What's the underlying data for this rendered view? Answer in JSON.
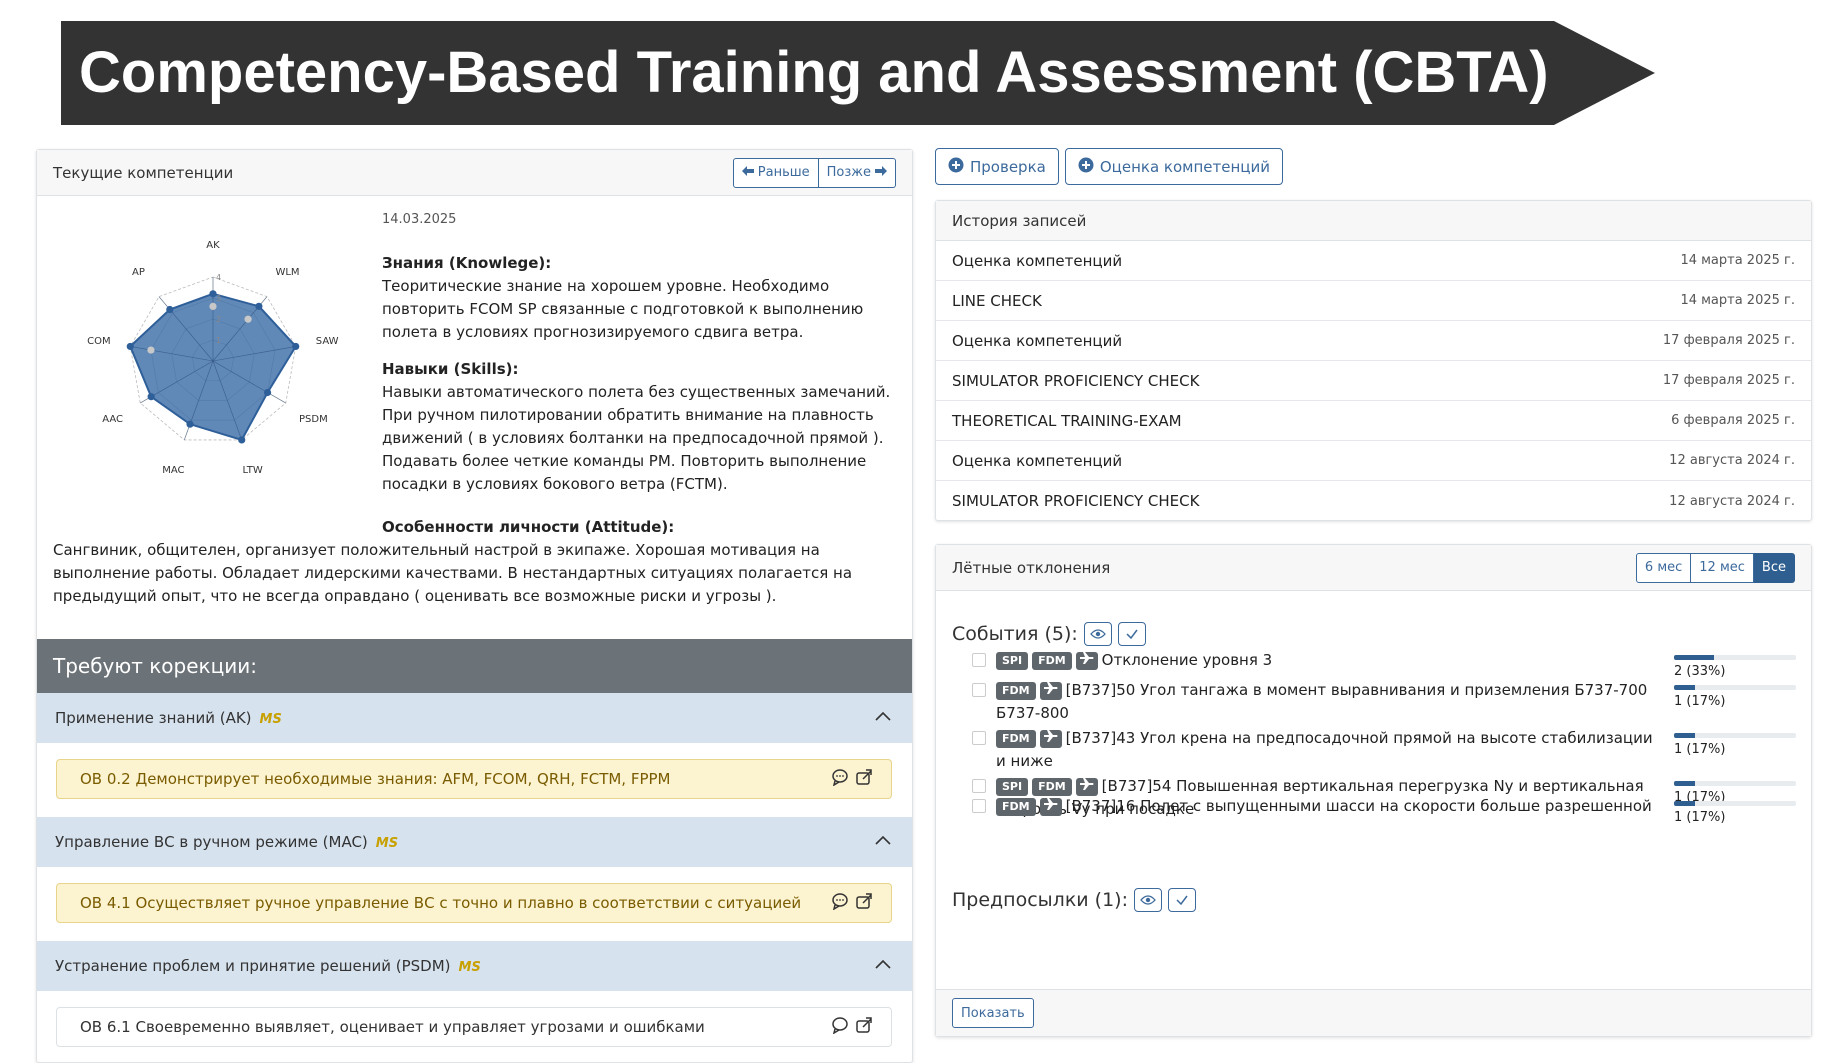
{
  "banner": {
    "title": "Competency-Based Training and Assessment (CBTA)"
  },
  "competencies": {
    "header": "Текущие компетенции",
    "earlier_label": "Раньше",
    "later_label": "Позже",
    "date": "14.03.2025",
    "radar": {
      "axes": [
        "AK",
        "WLM",
        "SAW",
        "PSDM",
        "LTW",
        "MAC",
        "AAC",
        "COM",
        "AP"
      ],
      "ticks": [
        "1",
        "2",
        "3",
        "4"
      ],
      "max": 4,
      "values": [
        3.2,
        3.4,
        4.0,
        3.0,
        4.0,
        3.2,
        3.4,
        4.0,
        3.2
      ],
      "previous": [
        2.6,
        2.6,
        4.0,
        3.0,
        4.0,
        3.2,
        3.4,
        3.0,
        3.2
      ],
      "fill_color": "#3e6fa8",
      "prev_color": "#c8c8c8"
    },
    "knowledge_title": "Знания (Knowlege):",
    "knowledge_text": "Теоритические знание на хорошем уровне. Необходимо повторить FCOM SP связанные с подготовкой к выполнению полета в условиях прогнозизируемого сдвига ветра.",
    "skills_title": "Навыки (Skills):",
    "skills_text": "Навыки автоматического полета без существенных замечаний. При ручном пилотировании обратить внимание на плавность движений ( в условиях болтанки на предпосадочной прямой ). Подавать более четкие команды PM. Повторить выполнение посадки в условиях бокового ветра (FCTM).",
    "attitude_title": "Особенности личности (Attitude):",
    "attitude_text": "Сангвиник, общителен, организует положительный настрой в экипаже. Хорошая мотивация на выполнение работы. Обладает лидерскими качествами. В нестандартных ситуациях полагается на предыдущий опыт, что не всегда оправдано ( оценивать все возможные риски и угрозы ).",
    "needs_title": "Требуют корекции:",
    "groups": [
      {
        "title": "Применение знаний (AK)",
        "badge": "MS",
        "item": "ОВ 0.2 Демонстрирует необходимые знания: AFM, FCOM, QRH, FCTM, FPPM"
      },
      {
        "title": "Управление ВС в ручном режиме (MAC)",
        "badge": "MS",
        "item": "ОВ 4.1 Осуществляет ручное управление ВС с точно и плавно в соответствии с ситуацией"
      },
      {
        "title": "Устранение проблем и принятие решений (PSDM)",
        "badge": "MS",
        "item": "ОВ 6.1 Своевременно выявляет, оценивает и управляет угрозами и ошибками"
      }
    ]
  },
  "actions": {
    "check_label": "Проверка",
    "assess_label": "Оценка компетенций"
  },
  "history": {
    "header": "История записей",
    "rows": [
      {
        "name": "Оценка компетенций",
        "date": "14 марта 2025 г."
      },
      {
        "name": "LINE CHECK",
        "date": "14 марта 2025 г."
      },
      {
        "name": "Оценка компетенций",
        "date": "17 февраля 2025 г."
      },
      {
        "name": "SIMULATOR PROFICIENCY CHECK",
        "date": "17 февраля 2025 г."
      },
      {
        "name": "THEORETICAL TRAINING-EXAM",
        "date": "6 февраля 2025 г."
      },
      {
        "name": "Оценка компетенций",
        "date": "12 августа 2024 г."
      },
      {
        "name": "SIMULATOR PROFICIENCY CHECK",
        "date": "12 августа 2024 г."
      }
    ]
  },
  "deviations": {
    "header": "Лётные отклонения",
    "periods": [
      "6 мес",
      "12 мес",
      "Все"
    ],
    "active_period": "Все",
    "events_title": "События (5):",
    "events": [
      {
        "tags": [
          "SPI",
          "FDM"
        ],
        "text": "Отклонение уровня 3",
        "stat": "2 (33%)",
        "pct": 0.33
      },
      {
        "tags": [
          "FDM"
        ],
        "text": "[B737]50 Угол тангажа в момент выравнивания и приземления Б737-700 Б737-800",
        "stat": "1 (17%)",
        "pct": 0.17
      },
      {
        "tags": [
          "FDM"
        ],
        "text": "[B737]43 Угол крена на предпосадочной прямой на высоте стабилизации и ниже",
        "stat": "1 (17%)",
        "pct": 0.17
      },
      {
        "tags": [
          "SPI",
          "FDM"
        ],
        "text": "[B737]54 Повышенная вертикальная перегрузка Ny и вертикальная скорость Vy при посадке",
        "stat": "1 (17%)",
        "pct": 0.17
      }
    ],
    "precond_title": "Предпосылки (1):",
    "preconditions": [
      {
        "tags": [
          "FDM"
        ],
        "text": "[B737]16 Полет с выпущенными шасси на скорости больше разрешенной",
        "stat": "1 (17%)",
        "pct": 0.17
      }
    ],
    "show_label": "Показать"
  }
}
